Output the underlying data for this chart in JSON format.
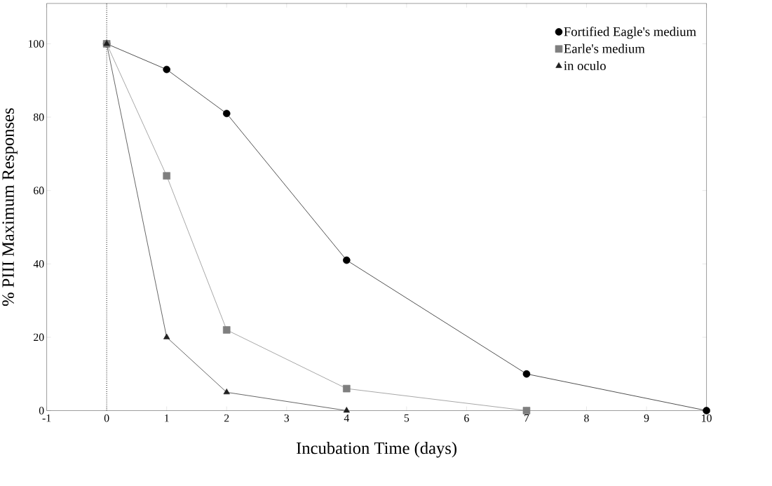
{
  "chart_data": {
    "type": "line",
    "xlabel": "Incubation Time  (days)",
    "ylabel": "% PIII Maximum Responses",
    "series": [
      {
        "name": "Fortified Eagle's medium",
        "color": "#000000",
        "marker": "circle",
        "x": [
          0,
          1,
          2,
          4,
          7,
          10
        ],
        "values": [
          100,
          93,
          81,
          41,
          10,
          0
        ]
      },
      {
        "name": "Earle's medium",
        "color": "#7f7f7f",
        "marker": "square",
        "x": [
          0,
          1,
          2,
          4,
          7
        ],
        "values": [
          100,
          64,
          22,
          6,
          0
        ]
      },
      {
        "name": "in oculo",
        "color": "#202020",
        "marker": "triangle",
        "x": [
          0,
          1,
          2,
          4
        ],
        "values": [
          100,
          20,
          5,
          0
        ]
      }
    ],
    "xlim": [
      -1,
      10
    ],
    "ylim": [
      0,
      111
    ],
    "xticks": [
      -1,
      0,
      1,
      2,
      3,
      4,
      5,
      6,
      7,
      8,
      9,
      10
    ],
    "yticks": [
      0,
      20,
      40,
      60,
      80,
      100
    ],
    "ref_lines": [
      {
        "axis": "x",
        "value": 0,
        "line_style": "dotted",
        "color": "#000000"
      }
    ],
    "grid": false,
    "legend": "top right",
    "line_style": "solid"
  }
}
